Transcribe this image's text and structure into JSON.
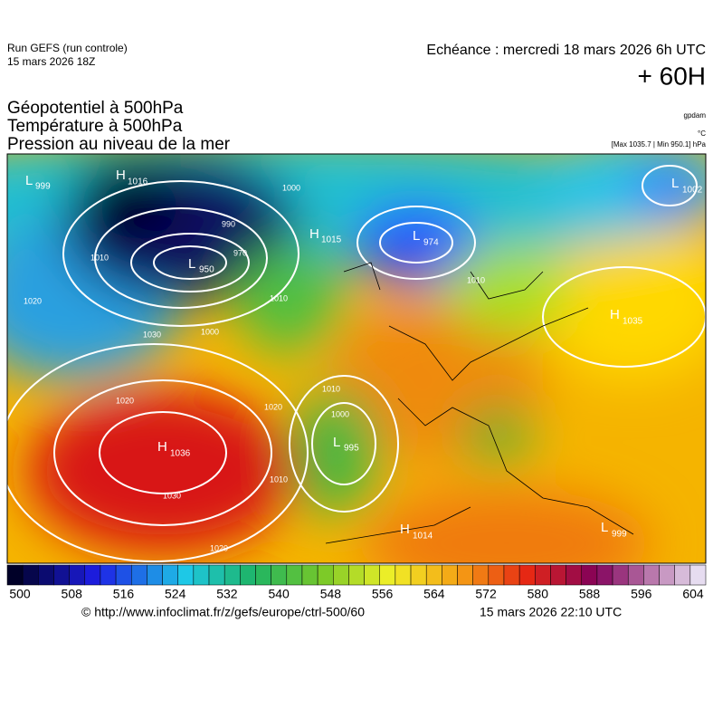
{
  "header": {
    "run": "Run GEFS (run controle)",
    "run_date": "15 mars 2026 18Z",
    "echeance": "Echéance : mercredi 18 mars 2026 6h UTC",
    "lead": "+ 60H",
    "fields": [
      "Géopotentiel à 500hPa",
      "Température à 500hPa",
      "Pression au niveau de la mer"
    ],
    "units": [
      "gpdam",
      "°C",
      "[Max 1035.7 | Min 950.1] hPa"
    ]
  },
  "map": {
    "centers": [
      {
        "kind": "L",
        "value": "999"
      },
      {
        "kind": "H",
        "value": "1016"
      },
      {
        "kind": "L",
        "value": "950"
      },
      {
        "kind": "H",
        "value": "1015"
      },
      {
        "kind": "L",
        "value": "974"
      },
      {
        "kind": "L",
        "value": "1002"
      },
      {
        "kind": "H",
        "value": "1035"
      },
      {
        "kind": "H",
        "value": "1036"
      },
      {
        "kind": "L",
        "value": "995"
      },
      {
        "kind": "H",
        "value": "1014"
      },
      {
        "kind": "L",
        "value": "999"
      }
    ],
    "isobar_labels": [
      "1000",
      "990",
      "970",
      "1010",
      "1020",
      "1030",
      "1020",
      "1010",
      "1000",
      "1010",
      "1020",
      "1030",
      "1010",
      "1000",
      "1010",
      "1020"
    ]
  },
  "colorbar": {
    "ticks": [
      "500",
      "508",
      "516",
      "524",
      "532",
      "540",
      "548",
      "556",
      "564",
      "572",
      "580",
      "588",
      "596",
      "604"
    ]
  },
  "footer": {
    "source": "© http://www.infoclimat.fr/z/gefs/europe/ctrl-500/60",
    "issued": "15 mars 2026 22:10 UTC"
  }
}
